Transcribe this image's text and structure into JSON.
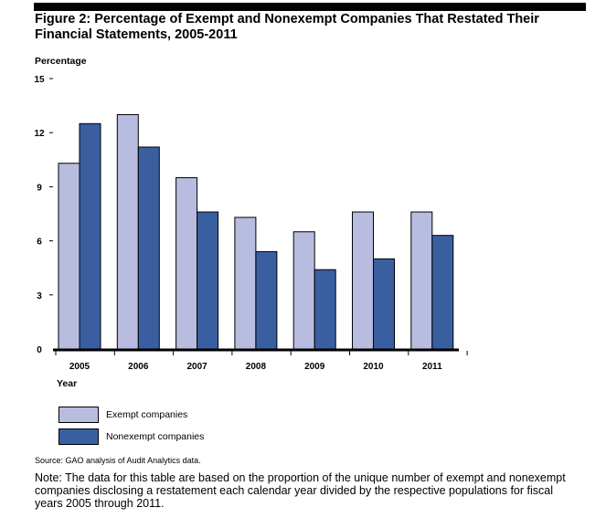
{
  "figure": {
    "title": "Figure 2: Percentage of Exempt and Nonexempt Companies That Restated Their Financial Statements, 2005-2011",
    "source": "Source: GAO analysis of Audit Analytics data.",
    "note": "Note: The data for this table are based on the proportion of the unique number of exempt and nonexempt companies disclosing a restatement each calendar year divided by the respective populations for fiscal years 2005 through 2011."
  },
  "colors": {
    "exempt": "#b8bcdf",
    "nonexempt": "#3a5fa0",
    "stroke": "#000000"
  },
  "chart_data": {
    "type": "bar",
    "title": "Figure 2: Percentage of Exempt and Nonexempt Companies That Restated Their Financial Statements, 2005-2011",
    "ylabel": "Percentage",
    "xlabel": "Year",
    "ylim": [
      0,
      15
    ],
    "yticks": [
      "0",
      "3",
      "6",
      "9",
      "12",
      "15"
    ],
    "categories": [
      "2005",
      "2006",
      "2007",
      "2008",
      "2009",
      "2010",
      "2011"
    ],
    "series": [
      {
        "name": "Exempt companies",
        "values": [
          10.3,
          13.0,
          9.5,
          7.3,
          6.5,
          7.6,
          7.6
        ]
      },
      {
        "name": "Nonexempt companies",
        "values": [
          12.5,
          11.2,
          7.6,
          5.4,
          4.4,
          5.0,
          6.3
        ]
      }
    ],
    "grid": false,
    "legend": "bottom-left"
  }
}
